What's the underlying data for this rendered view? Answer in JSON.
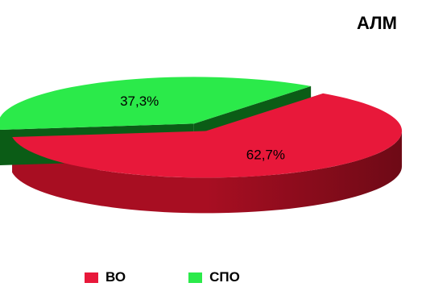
{
  "chart_data": {
    "type": "pie",
    "title": "АЛМ",
    "slices": [
      {
        "name": "ВО",
        "value": 62.7,
        "label": "62,7%",
        "color": "#E8183A",
        "side_color": "#A80E22",
        "dark_color": "#6E0A16"
      },
      {
        "name": "СПО",
        "value": 37.3,
        "label": "37,3%",
        "color": "#2BEA4A",
        "side_color": "#159A28",
        "dark_color": "#0B5C16"
      }
    ],
    "legend_position": "bottom"
  }
}
